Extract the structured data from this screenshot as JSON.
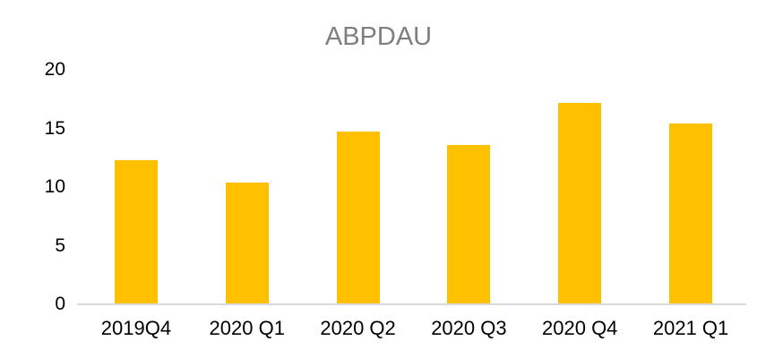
{
  "chart_data": {
    "type": "bar",
    "title": "ABPDAU",
    "categories": [
      "2019Q4",
      "2020 Q1",
      "2020 Q2",
      "2020 Q3",
      "2020 Q4",
      "2021 Q1"
    ],
    "values": [
      12.3,
      10.4,
      14.7,
      13.6,
      17.2,
      15.4
    ],
    "xlabel": "",
    "ylabel": "",
    "ylim": [
      0,
      20
    ],
    "yticks": [
      0,
      5,
      10,
      15,
      20
    ],
    "grid": false,
    "legend": false,
    "bar_color": "#FFC000",
    "title_color": "#7F7F7F",
    "axis_line_color": "#D9D9D9",
    "tick_label_color": "#000000",
    "background_color": "#FFFFFF"
  }
}
